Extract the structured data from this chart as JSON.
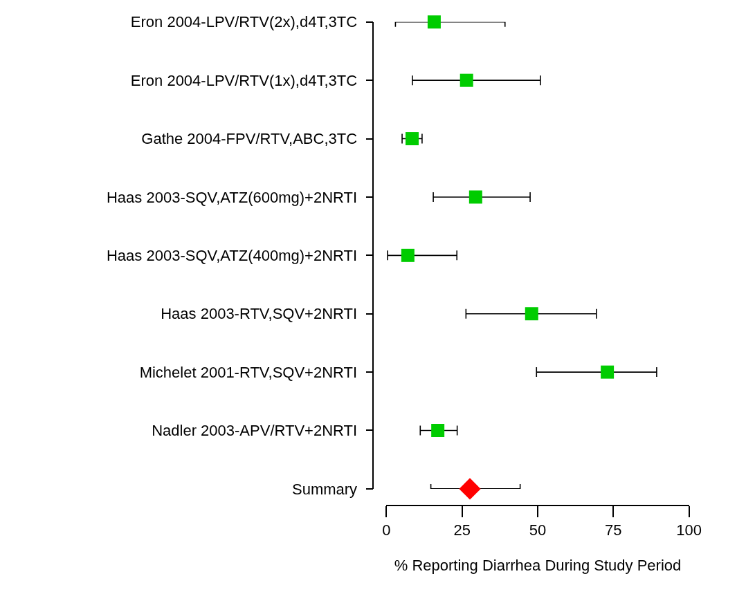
{
  "chart_data": {
    "type": "scatter",
    "orientation": "horizontal",
    "xlabel": "% Reporting Diarrhea During Study Period",
    "categories": [
      "Eron 2004-LPV/RTV(2x),d4T,3TC",
      "Eron 2004-LPV/RTV(1x),d4T,3TC",
      "Gathe 2004-FPV/RTV,ABC,3TC",
      "Haas 2003-SQV,ATZ(600mg)+2NRTI",
      "Haas 2003-SQV,ATZ(400mg)+2NRTI",
      "Haas 2003-RTV,SQV+2NRTI",
      "Michelet 2001-RTV,SQV+2NRTI",
      "Nadler 2003-APV/RTV+2NRTI",
      "Summary"
    ],
    "series": [
      {
        "color": "#00cc00",
        "marker": "square",
        "values": [
          15.8,
          26.5,
          8.5,
          29.5,
          7.1,
          48.0,
          73.0,
          17.0,
          null
        ],
        "errors": [
          [
            3.0,
            39.2
          ],
          [
            8.6,
            50.9
          ],
          [
            5.2,
            11.8
          ],
          [
            15.5,
            47.5
          ],
          [
            0.4,
            23.3
          ],
          [
            26.3,
            69.4
          ],
          [
            49.6,
            89.3
          ],
          [
            11.2,
            23.4
          ],
          null
        ]
      },
      {
        "color": "#ff0000",
        "marker": "diamond",
        "values": [
          null,
          null,
          null,
          null,
          null,
          null,
          null,
          null,
          27.6
        ],
        "errors": [
          null,
          null,
          null,
          null,
          null,
          null,
          null,
          null,
          [
            14.7,
            44.2
          ]
        ]
      }
    ],
    "xlim": [
      0,
      100
    ],
    "xticks": [
      0,
      25,
      50,
      75,
      100
    ],
    "grid": false,
    "legend": false
  }
}
